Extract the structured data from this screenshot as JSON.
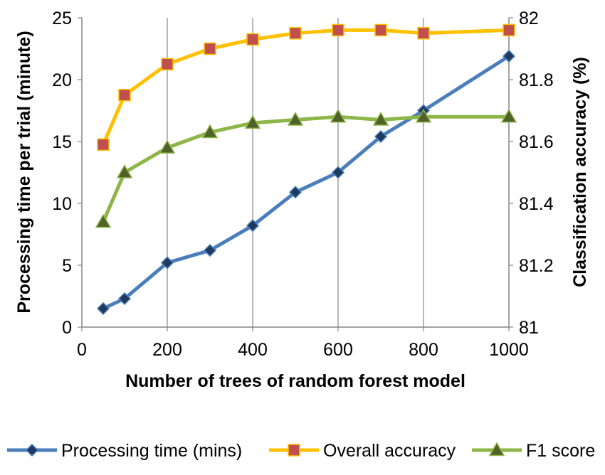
{
  "chart_data": {
    "type": "line",
    "xlabel": "Number of trees of random forest model",
    "ylabel_left": "Processing time per trial (minute)",
    "ylabel_right": "Classification accuracy (%)",
    "xlim": [
      0,
      1000
    ],
    "xticks": [
      "0",
      "200",
      "400",
      "600",
      "800",
      "1000"
    ],
    "ylim_left": [
      0,
      25
    ],
    "yticks_left": [
      "0",
      "5",
      "10",
      "15",
      "20",
      "25"
    ],
    "ylim_right": [
      81,
      82
    ],
    "yticks_right": [
      "81",
      "81.2",
      "81.4",
      "81.6",
      "81.8",
      "82"
    ],
    "grid": "vertical",
    "legend_position": "bottom",
    "x": [
      50,
      100,
      200,
      300,
      400,
      500,
      600,
      700,
      800,
      1000
    ],
    "series": [
      {
        "name": "Processing time (mins)",
        "axis": "left",
        "marker": "diamond",
        "color": "#4a7ebb",
        "values": [
          1.5,
          2.3,
          5.2,
          6.2,
          8.2,
          10.9,
          12.5,
          15.4,
          17.5,
          21.9
        ]
      },
      {
        "name": "Overall accuracy",
        "axis": "right",
        "marker": "square",
        "color": "#ffc000",
        "marker_color": "#c0504d",
        "values": [
          81.59,
          81.75,
          81.85,
          81.9,
          81.93,
          81.95,
          81.96,
          81.96,
          81.95,
          81.96
        ]
      },
      {
        "name": "F1 score",
        "axis": "right",
        "marker": "triangle",
        "color": "#8db548",
        "marker_color": "#4f6228",
        "values": [
          81.34,
          81.5,
          81.58,
          81.63,
          81.66,
          81.67,
          81.68,
          81.67,
          81.68,
          81.68
        ]
      }
    ]
  }
}
